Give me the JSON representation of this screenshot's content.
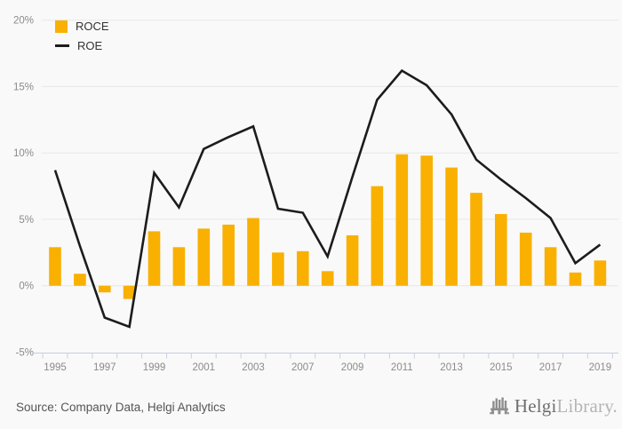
{
  "colors": {
    "roce": "#f9b000",
    "roe": "#1c1c1c",
    "grid": "#e8e8e8",
    "axis": "#c9cfe4",
    "axis_text": "#8b8b8b",
    "background": "#f9f9f9"
  },
  "legend": {
    "roce_label": "ROCE",
    "roe_label": "ROE"
  },
  "y_axis": {
    "tick_labels": [
      "20%",
      "15%",
      "10%",
      "5%",
      "0%",
      "-5%"
    ],
    "tick_values": [
      20,
      15,
      10,
      5,
      0,
      -5
    ]
  },
  "x_axis": {
    "visible_labels": [
      "1995",
      "1997",
      "1999",
      "2001",
      "2003",
      "2007",
      "2009",
      "2011",
      "2013",
      "2015",
      "2017",
      "2019"
    ]
  },
  "footer": {
    "source": "Source: Company Data, Helgi Analytics",
    "logo_primary": "Helgi",
    "logo_secondary": "Library."
  },
  "chart_data": {
    "type": "bar",
    "title": "",
    "xlabel": "",
    "ylabel": "",
    "ylim": [
      -5,
      20
    ],
    "y_tick_format": "percent",
    "grid": "horizontal",
    "legend_position": "top-left",
    "categories": [
      "1995",
      "1996",
      "1997",
      "1998",
      "1999",
      "2000",
      "2001",
      "2002",
      "2003",
      "2006",
      "2007",
      "2008",
      "2009",
      "2010",
      "2011",
      "2012",
      "2013",
      "2014",
      "2015",
      "2016",
      "2017",
      "2018",
      "2019"
    ],
    "series": [
      {
        "name": "ROCE",
        "type": "bar",
        "color": "#f9b000",
        "values": [
          2.9,
          0.9,
          -0.5,
          -1.0,
          4.1,
          2.9,
          4.3,
          4.6,
          5.1,
          2.5,
          2.6,
          1.1,
          3.8,
          7.5,
          9.9,
          9.8,
          8.9,
          7.0,
          5.4,
          4.0,
          2.9,
          1.0,
          1.9
        ]
      },
      {
        "name": "ROE",
        "type": "line",
        "color": "#1c1c1c",
        "values": [
          8.7,
          3.0,
          -2.4,
          -3.1,
          8.5,
          5.9,
          10.3,
          11.2,
          12.0,
          5.8,
          5.5,
          2.2,
          8.2,
          14.0,
          16.2,
          15.1,
          12.9,
          9.5,
          8.0,
          6.6,
          5.1,
          1.7,
          3.1
        ]
      }
    ]
  }
}
